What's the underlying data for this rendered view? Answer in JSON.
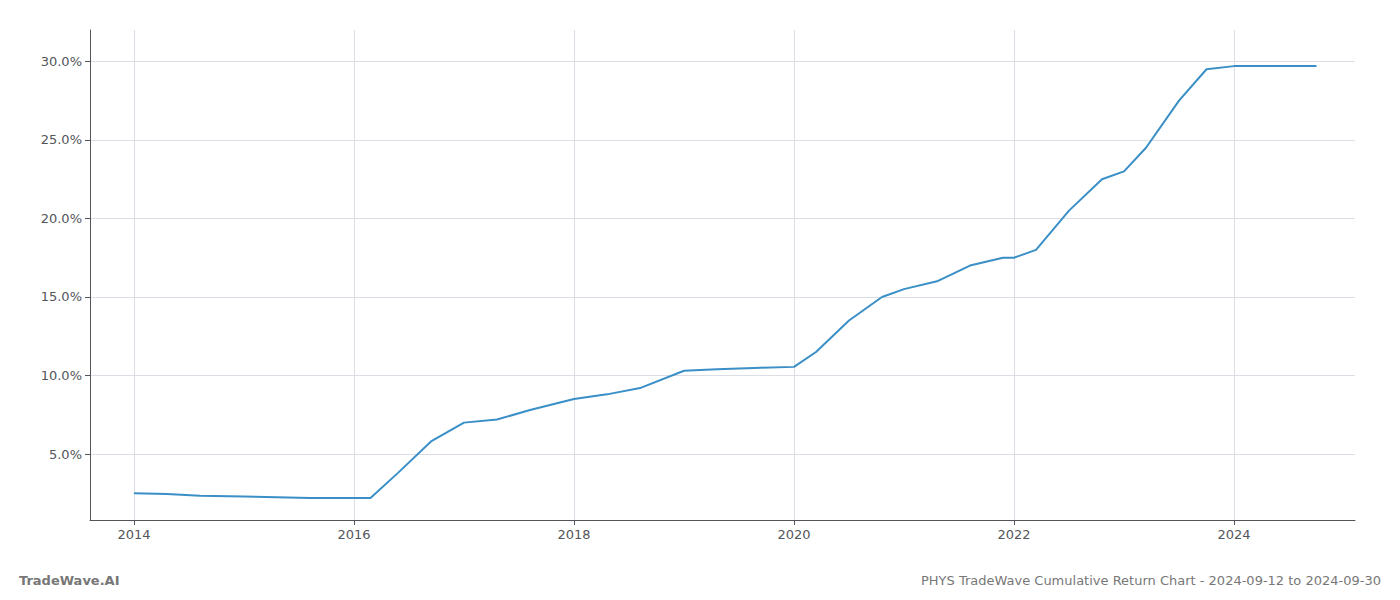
{
  "chart_data": {
    "type": "line",
    "title": "PHYS TradeWave Cumulative Return Chart - 2024-09-12 to 2024-09-30",
    "annotations": [
      "TradeWave.AI"
    ],
    "color": "#3a8fc7",
    "grid": true,
    "x": [
      2014.0,
      2014.3,
      2014.6,
      2015.0,
      2015.3,
      2015.6,
      2016.0,
      2016.15,
      2016.4,
      2016.7,
      2017.0,
      2017.3,
      2017.6,
      2018.0,
      2018.3,
      2018.6,
      2019.0,
      2019.3,
      2019.5,
      2019.7,
      2020.0,
      2020.2,
      2020.5,
      2020.8,
      2021.0,
      2021.3,
      2021.6,
      2021.9,
      2022.0,
      2022.2,
      2022.5,
      2022.8,
      2023.0,
      2023.2,
      2023.5,
      2023.75,
      2024.0,
      2024.5,
      2024.75
    ],
    "values": [
      2.5,
      2.45,
      2.35,
      2.3,
      2.25,
      2.2,
      2.2,
      2.2,
      3.8,
      5.8,
      7.0,
      7.2,
      7.8,
      8.5,
      8.8,
      9.2,
      10.3,
      10.4,
      10.45,
      10.5,
      10.55,
      11.5,
      13.5,
      15.0,
      15.5,
      16.0,
      17.0,
      17.5,
      17.5,
      18.0,
      20.5,
      22.5,
      23.0,
      24.5,
      27.5,
      29.5,
      29.7,
      29.7,
      29.7
    ],
    "xlim": [
      2013.6,
      2025.1
    ],
    "xticks": [
      2014,
      2016,
      2018,
      2020,
      2022,
      2024
    ],
    "ylim": [
      0.8,
      32.0
    ],
    "yticks": [
      {
        "value": 5.0,
        "label": "5.0%"
      },
      {
        "value": 10.0,
        "label": "10.0%"
      },
      {
        "value": 15.0,
        "label": "15.0%"
      },
      {
        "value": 20.0,
        "label": "20.0%"
      },
      {
        "value": 25.0,
        "label": "25.0%"
      },
      {
        "value": 30.0,
        "label": "30.0%"
      }
    ]
  }
}
